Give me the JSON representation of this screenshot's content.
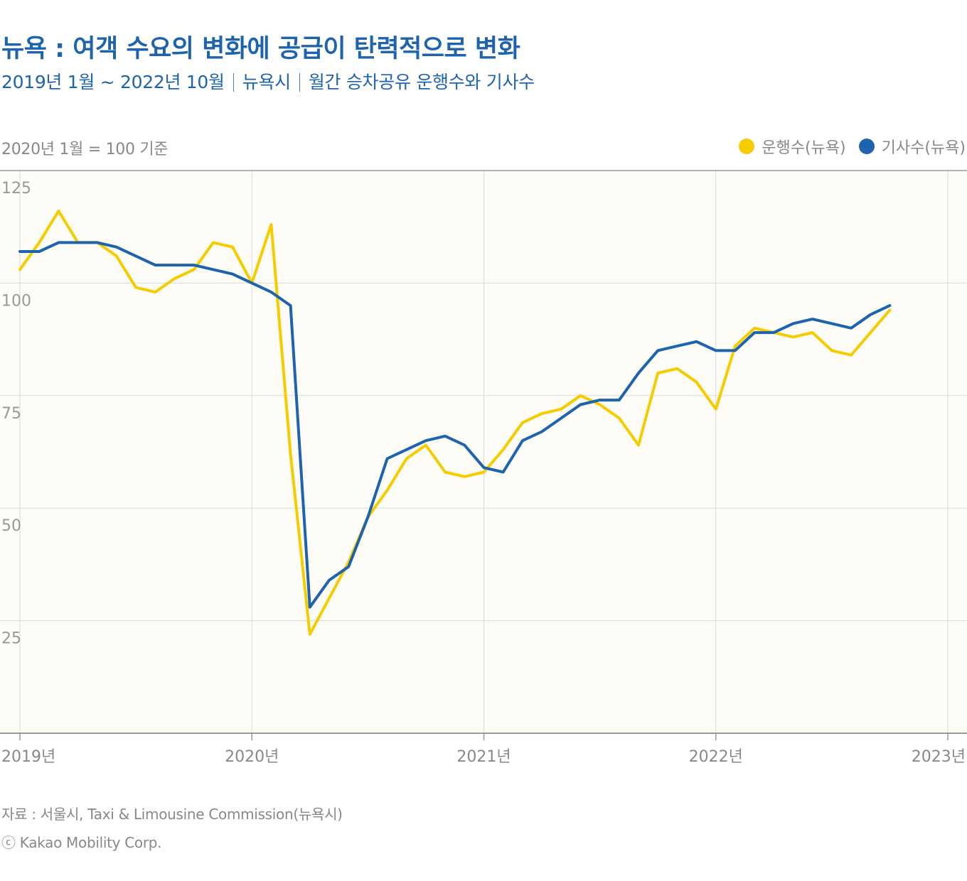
{
  "title": "뉴욕 : 여객 수요의 변화에 공급이 탄력적으로 변화",
  "subtitle": {
    "period": "2019년 1월 ~ 2022년 10월",
    "region": "뉴욕시",
    "metric": "월간 승차공유 운행수와 기사수"
  },
  "baseline_note": "2020년 1월 = 100 기준",
  "footer": {
    "source": "자료 : 서울시, Taxi & Limousine Commission(뉴욕시)",
    "copyright": "ⓒ Kakao Mobility Corp."
  },
  "colors": {
    "trips": "#f5cc00",
    "drivers": "#1e63ad",
    "title": "#1e63ad"
  },
  "chart_data": {
    "type": "line",
    "title": "뉴욕 : 여객 수요의 변화에 공급이 탄력적으로 변화",
    "xlabel": "",
    "ylabel": "2020년 1월 = 100 기준",
    "x_start": "2019-01",
    "x_end": "2022-10",
    "xlim": [
      2019,
      2023
    ],
    "ylim": [
      0,
      125
    ],
    "grid": true,
    "legend_position": "top-right",
    "x_ticks": [
      {
        "value": 2019,
        "label": "2019년"
      },
      {
        "value": 2020,
        "label": "2020년"
      },
      {
        "value": 2021,
        "label": "2021년"
      },
      {
        "value": 2022,
        "label": "2022년"
      },
      {
        "value": 2023,
        "label": "2023년"
      }
    ],
    "y_ticks": [
      {
        "value": 125,
        "label": "125"
      },
      {
        "value": 100,
        "label": "100"
      },
      {
        "value": 75,
        "label": "75"
      },
      {
        "value": 50,
        "label": "50"
      },
      {
        "value": 25,
        "label": "25"
      }
    ],
    "series": [
      {
        "name": "운행수(뉴욕)",
        "color": "#f5cc00",
        "values": [
          103,
          109,
          116,
          109,
          109,
          106,
          99,
          98,
          101,
          103,
          109,
          108,
          100,
          113,
          62,
          22,
          30,
          38,
          48,
          54,
          61,
          64,
          58,
          57,
          58,
          63,
          69,
          71,
          72,
          75,
          73,
          70,
          64,
          80,
          81,
          78,
          72,
          86,
          90,
          89,
          88,
          89,
          85,
          84,
          89,
          94
        ]
      },
      {
        "name": "기사수(뉴욕)",
        "color": "#1e63ad",
        "values": [
          107,
          107,
          109,
          109,
          109,
          108,
          106,
          104,
          104,
          104,
          103,
          102,
          100,
          98,
          95,
          28,
          34,
          37,
          48,
          61,
          63,
          65,
          66,
          64,
          59,
          58,
          65,
          67,
          70,
          73,
          74,
          74,
          80,
          85,
          86,
          87,
          85,
          85,
          89,
          89,
          91,
          92,
          91,
          90,
          93,
          95
        ]
      }
    ]
  }
}
